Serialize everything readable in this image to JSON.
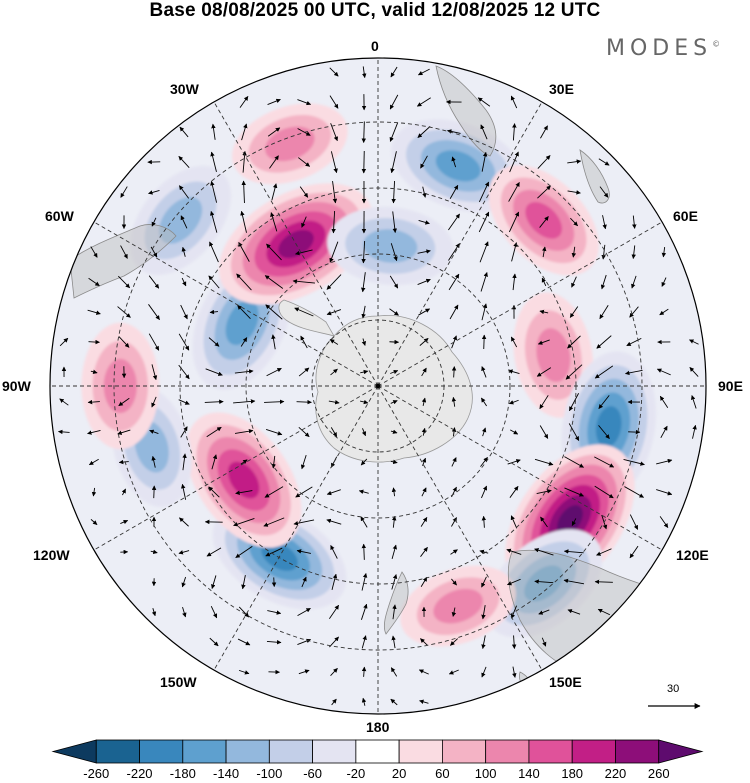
{
  "title": "Base 08/08/2025 00 UTC, valid 12/08/2025 12 UTC",
  "brand": "MODES",
  "brand_mark": "©",
  "longitude_labels": {
    "lon_0": "0",
    "lon_30e": "30E",
    "lon_60e": "60E",
    "lon_90e": "90E",
    "lon_120e": "120E",
    "lon_150e": "150E",
    "lon_180": "180",
    "lon_150w": "150W",
    "lon_120w": "120W",
    "lon_90w": "90W",
    "lon_60w": "60W",
    "lon_30w": "30W"
  },
  "reference_vector": "30",
  "colorbar": {
    "ticks": [
      "-260",
      "-220",
      "-180",
      "-140",
      "-100",
      "-60",
      "-20",
      "20",
      "60",
      "100",
      "140",
      "180",
      "220",
      "260"
    ],
    "colors": [
      "#0d3a5f",
      "#1a6391",
      "#3987bd",
      "#5ea0cf",
      "#93b8dd",
      "#c3cfe8",
      "#e4e4f2",
      "#ffffff",
      "#fadce2",
      "#f4b3c5",
      "#ec86ad",
      "#e0529a",
      "#c21f86",
      "#8d0e79",
      "#5e0b6e"
    ]
  },
  "chart_data": {
    "type": "heatmap",
    "projection": "south-polar-stereographic",
    "title": "Base 08/08/2025 00 UTC, valid 12/08/2025 12 UTC",
    "levels": [
      -260,
      -220,
      -180,
      -140,
      -100,
      -60,
      -20,
      20,
      60,
      100,
      140,
      180,
      220,
      260
    ],
    "anomaly_centers": [
      {
        "lon_deg": 20,
        "lat_deg": -40,
        "value": -160
      },
      {
        "lon_deg": 45,
        "lat_deg": -40,
        "value": 140
      },
      {
        "lon_deg": 80,
        "lat_deg": -52,
        "value": 120
      },
      {
        "lon_deg": 100,
        "lat_deg": -40,
        "value": -200
      },
      {
        "lon_deg": 125,
        "lat_deg": -40,
        "value": 260
      },
      {
        "lon_deg": 140,
        "lat_deg": -35,
        "value": -150
      },
      {
        "lon_deg": 160,
        "lat_deg": -40,
        "value": 100
      },
      {
        "lon_deg": -150,
        "lat_deg": -48,
        "value": -180
      },
      {
        "lon_deg": -125,
        "lat_deg": -55,
        "value": 200
      },
      {
        "lon_deg": -105,
        "lat_deg": -40,
        "value": -110
      },
      {
        "lon_deg": -90,
        "lat_deg": -35,
        "value": 120
      },
      {
        "lon_deg": -65,
        "lat_deg": -58,
        "value": -170
      },
      {
        "lon_deg": -30,
        "lat_deg": -55,
        "value": 250
      },
      {
        "lon_deg": -50,
        "lat_deg": -35,
        "value": -120
      },
      {
        "lon_deg": -20,
        "lat_deg": -35,
        "value": 100
      },
      {
        "lon_deg": 5,
        "lat_deg": -60,
        "value": -120
      }
    ]
  }
}
